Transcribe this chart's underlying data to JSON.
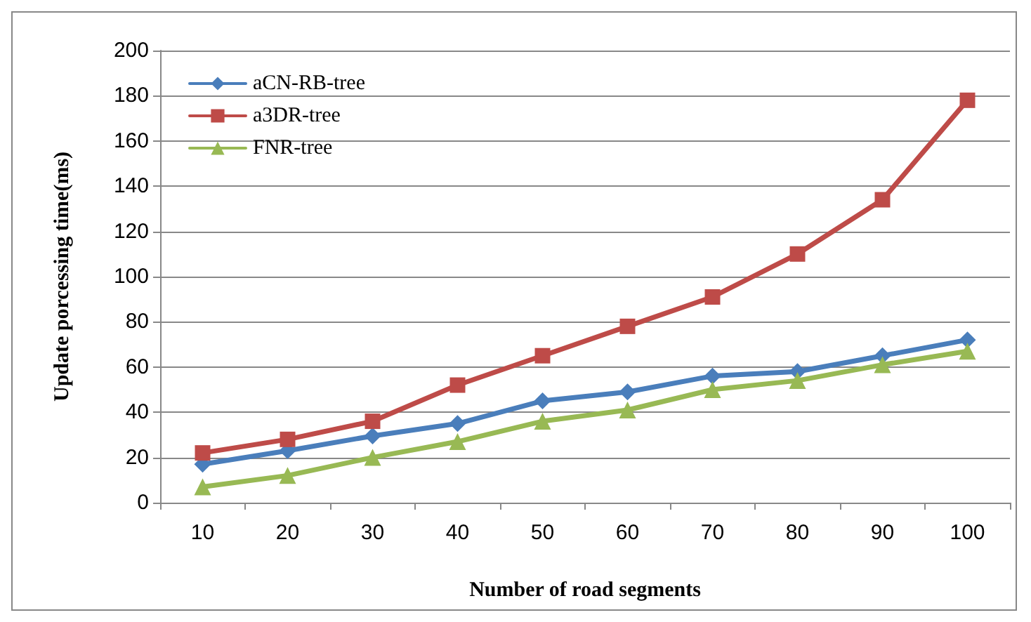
{
  "chart_data": {
    "type": "line",
    "xlabel": "Number of road segments",
    "ylabel": "Update porcessing time(ms)",
    "categories": [
      "10",
      "20",
      "30",
      "40",
      "50",
      "60",
      "70",
      "80",
      "90",
      "100"
    ],
    "series": [
      {
        "name": "aCN-RB-tree",
        "color": "#4a7ebb",
        "marker": "diamond",
        "values": [
          17,
          23,
          29.5,
          35,
          45,
          49,
          56,
          58,
          65,
          72
        ]
      },
      {
        "name": "a3DR-tree",
        "color": "#be4b48",
        "marker": "square",
        "values": [
          22,
          28,
          36,
          52,
          65,
          78,
          91,
          110,
          134,
          178
        ]
      },
      {
        "name": "FNR-tree",
        "color": "#98b954",
        "marker": "triangle",
        "values": [
          7,
          12,
          20,
          27,
          36,
          41,
          50,
          54,
          61,
          67
        ]
      }
    ],
    "ylim": [
      0,
      200
    ],
    "yticks": [
      0,
      20,
      40,
      60,
      80,
      100,
      120,
      140,
      160,
      180,
      200
    ],
    "grid": "y",
    "legend": "top left",
    "line_style": "solid"
  }
}
